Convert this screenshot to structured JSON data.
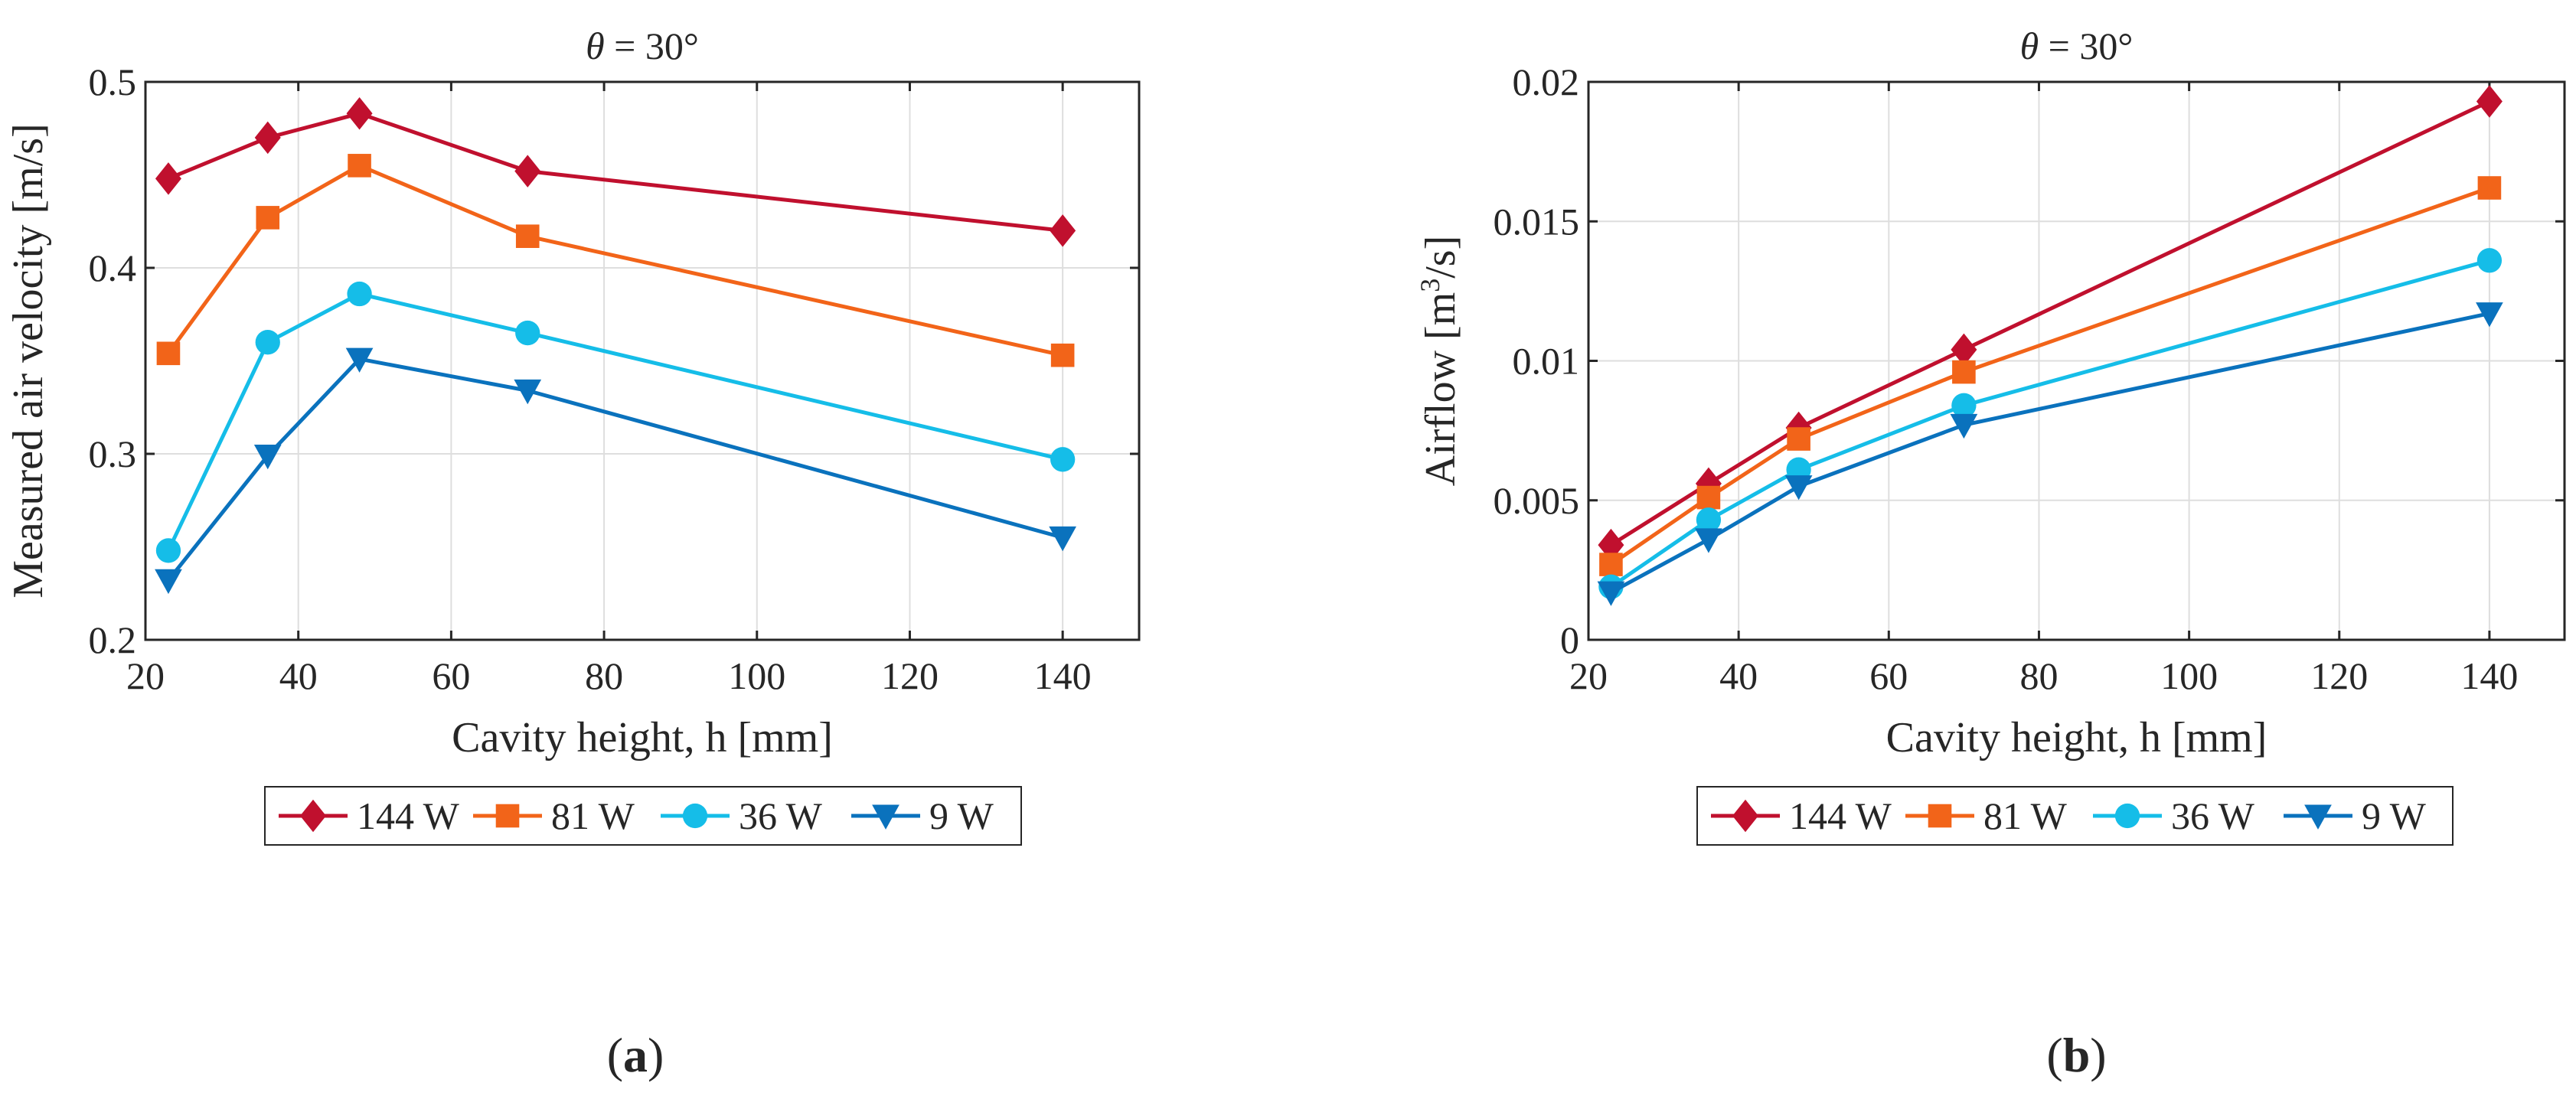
{
  "colors": {
    "grid": "#dedede",
    "axis": "#262626",
    "text": "#262626"
  },
  "chart_data": [
    {
      "id": "a",
      "type": "line",
      "title_symbol": "θ",
      "title_rest": " = 30°",
      "xlabel": "Cavity height, h [mm]",
      "ylabel": "Measured air velocity [m/s]",
      "xlim": [
        20,
        150
      ],
      "ylim": [
        0.2,
        0.5
      ],
      "xticks": [
        20,
        40,
        60,
        80,
        100,
        120,
        140
      ],
      "yticks": [
        "0.2",
        "0.3",
        "0.4",
        "0.5"
      ],
      "x": [
        23,
        36,
        48,
        70,
        140
      ],
      "series": [
        {
          "name": "144 W",
          "color": "#c0102e",
          "marker": "diamond",
          "values": [
            0.448,
            0.47,
            0.483,
            0.452,
            0.42
          ]
        },
        {
          "name": "81 W",
          "color": "#f26419",
          "marker": "square",
          "values": [
            0.354,
            0.427,
            0.455,
            0.417,
            0.353
          ]
        },
        {
          "name": "36 W",
          "color": "#15bde8",
          "marker": "circle",
          "values": [
            0.248,
            0.36,
            0.386,
            0.365,
            0.297
          ]
        },
        {
          "name": "9 W",
          "color": "#0a72bd",
          "marker": "triangle-down",
          "values": [
            0.232,
            0.299,
            0.351,
            0.334,
            0.255
          ]
        }
      ],
      "caption": "a"
    },
    {
      "id": "b",
      "type": "line",
      "title_symbol": "θ",
      "title_rest": " = 30°",
      "xlabel": "Cavity height, h [mm]",
      "ylabel_main": "Airflow [m",
      "ylabel_sup": "3",
      "ylabel_end": "/s]",
      "xlim": [
        20,
        150
      ],
      "ylim": [
        0,
        0.02
      ],
      "xticks": [
        20,
        40,
        60,
        80,
        100,
        120,
        140
      ],
      "yticks": [
        "0",
        "0.005",
        "0.01",
        "0.015",
        "0.02"
      ],
      "x": [
        23,
        36,
        48,
        70,
        140
      ],
      "series": [
        {
          "name": "144 W",
          "color": "#c0102e",
          "marker": "diamond",
          "values": [
            0.0034,
            0.0056,
            0.0076,
            0.0104,
            0.0193
          ]
        },
        {
          "name": "81 W",
          "color": "#f26419",
          "marker": "square",
          "values": [
            0.0027,
            0.0051,
            0.0072,
            0.0096,
            0.0162
          ]
        },
        {
          "name": "36 W",
          "color": "#15bde8",
          "marker": "circle",
          "values": [
            0.0019,
            0.0043,
            0.0061,
            0.0084,
            0.0136
          ]
        },
        {
          "name": "9 W",
          "color": "#0a72bd",
          "marker": "triangle-down",
          "values": [
            0.0017,
            0.0036,
            0.0055,
            0.0077,
            0.0117
          ]
        }
      ],
      "caption": "b"
    }
  ]
}
